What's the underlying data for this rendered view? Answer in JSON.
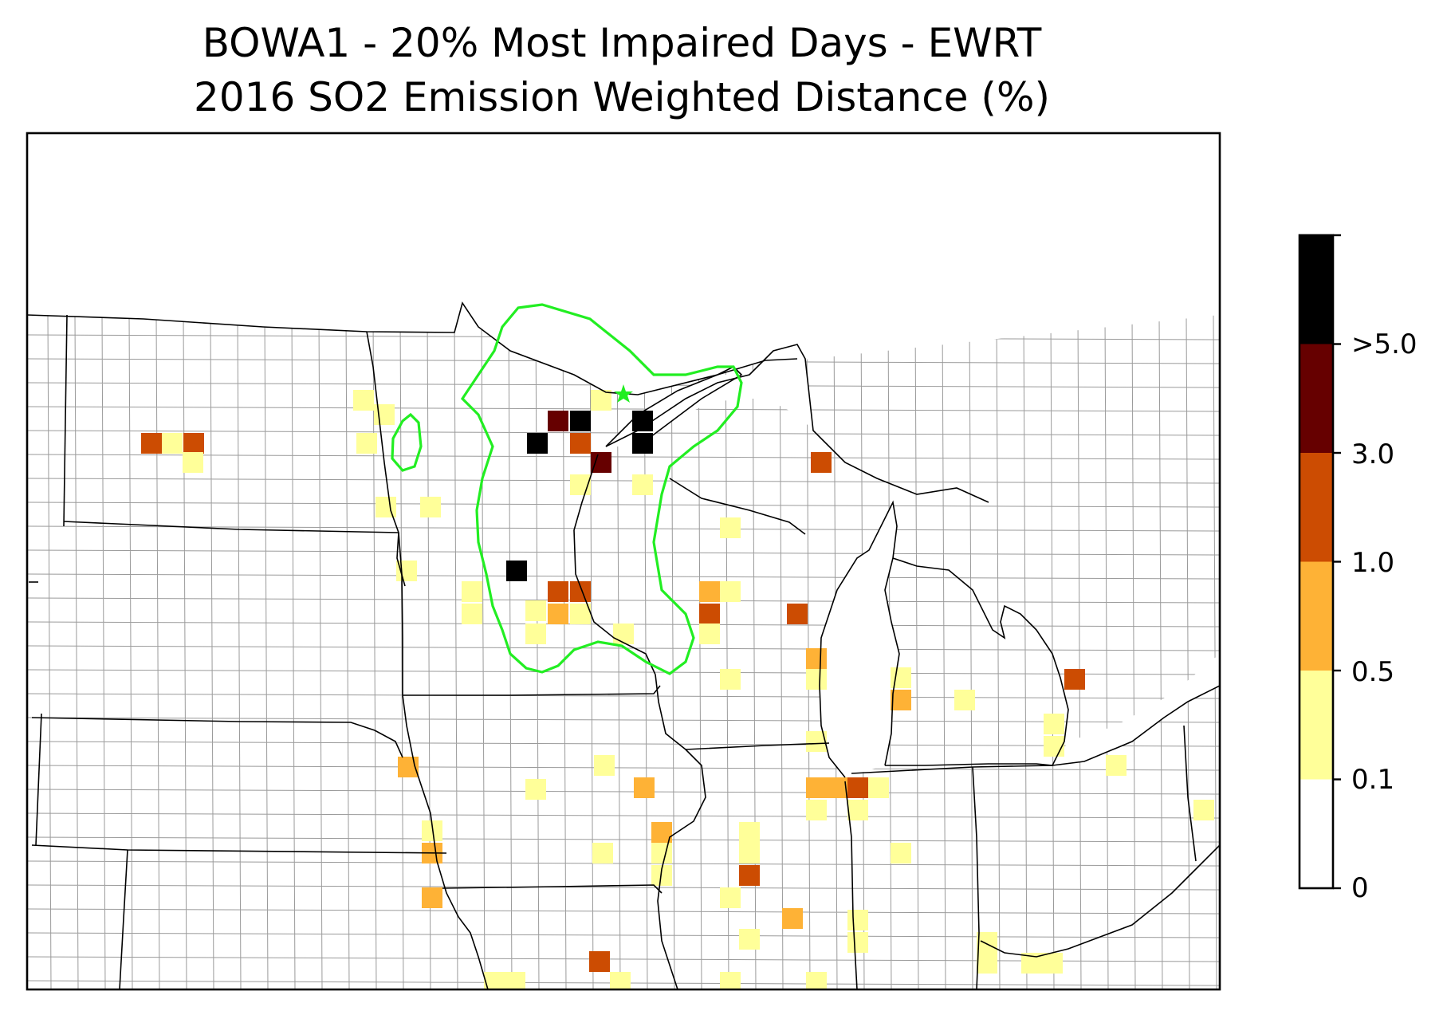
{
  "title": {
    "line1": "BOWA1 - 20% Most Impaired Days - EWRT",
    "line2": "2016 SO2 Emission Weighted Distance (%)"
  },
  "colorbar": {
    "bins": [
      {
        "label": "0",
        "color": "#ffffff"
      },
      {
        "label": "0.1",
        "color": "#ffff99"
      },
      {
        "label": "0.5",
        "color": "#feb236"
      },
      {
        "label": "1.0",
        "color": "#cc4c02"
      },
      {
        "label": "3.0",
        "color": "#660000"
      },
      {
        "label": ">5.0",
        "color": "#000000"
      }
    ],
    "tick_labels": [
      "0",
      "0.1",
      "0.5",
      "1.0",
      "3.0",
      ">5.0"
    ]
  },
  "map": {
    "region": "Upper Midwest United States",
    "site_marker": {
      "name": "BOWA1",
      "icon": "star-icon",
      "color": "#22ee22"
    },
    "contour_color": "#22ee22",
    "state_border_color": "#000000",
    "county_border_color": "#9a9a9a"
  }
}
